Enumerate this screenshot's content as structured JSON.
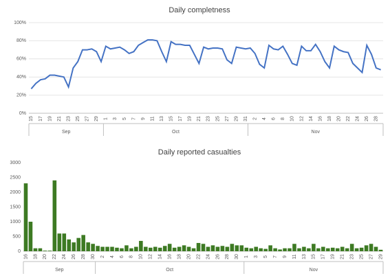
{
  "chart_data": [
    {
      "type": "line",
      "title": "Daily completness",
      "color": "#4472c4",
      "categories": [
        "15",
        null,
        "17",
        null,
        "19",
        null,
        "21",
        null,
        "23",
        null,
        "25",
        null,
        "27",
        null,
        "29",
        null,
        "1",
        null,
        "3",
        null,
        "5",
        null,
        "7",
        null,
        "9",
        null,
        "11",
        null,
        "13",
        null,
        "15",
        null,
        "17",
        null,
        "19",
        null,
        "21",
        null,
        "23",
        null,
        "25",
        null,
        "27",
        null,
        "29",
        null,
        "31",
        null,
        "2",
        null,
        "4",
        null,
        "6",
        null,
        "8",
        null,
        "10",
        null,
        "12",
        null,
        "14",
        null,
        "16",
        null,
        "18",
        null,
        "20",
        null,
        "22",
        null,
        "24",
        null,
        "26",
        null,
        "28",
        null
      ],
      "months": [
        "Sep",
        "Oct",
        "Nov"
      ],
      "values": [
        27,
        33,
        37,
        38,
        42,
        42,
        41,
        40,
        29,
        50,
        57,
        70,
        70,
        71,
        68,
        57,
        74,
        71,
        72,
        73,
        70,
        66,
        68,
        75,
        78,
        81,
        81,
        80,
        68,
        57,
        79,
        76,
        76,
        75,
        75,
        65,
        55,
        73,
        71,
        72,
        72,
        71,
        59,
        55,
        73,
        72,
        71,
        72,
        66,
        54,
        50,
        75,
        71,
        70,
        74,
        65,
        55,
        53,
        74,
        69,
        69,
        76,
        68,
        57,
        50,
        74,
        70,
        68,
        67,
        55,
        50,
        45,
        75,
        65,
        50,
        48
      ],
      "ylim": [
        0,
        100
      ],
      "yticks": [
        {
          "value": 0,
          "label": "0%"
        },
        {
          "value": 20,
          "label": "20%"
        },
        {
          "value": 40,
          "label": "40%"
        },
        {
          "value": 60,
          "label": "60%"
        },
        {
          "value": 80,
          "label": "80%"
        },
        {
          "value": 100,
          "label": "100%"
        }
      ]
    },
    {
      "type": "bar",
      "title": "Daily reported casualties",
      "color": "#3d7a23",
      "categories": [
        "16",
        null,
        "18",
        null,
        "20",
        null,
        "22",
        null,
        "24",
        null,
        "26",
        null,
        "28",
        null,
        "30",
        null,
        "2",
        null,
        "4",
        null,
        "6",
        null,
        "8",
        null,
        "10",
        null,
        "12",
        null,
        "14",
        null,
        "16",
        null,
        "18",
        null,
        "20",
        null,
        "22",
        null,
        "24",
        null,
        "26",
        null,
        "28",
        null,
        "30",
        null,
        "1",
        null,
        "3",
        null,
        "5",
        null,
        "7",
        null,
        "9",
        null,
        "11",
        null,
        "13",
        null,
        "15",
        null,
        "17",
        null,
        "19",
        null,
        "21",
        null,
        "23",
        null,
        "25",
        null,
        "27",
        null,
        "29"
      ],
      "months": [
        "Sep",
        "Oct",
        "Nov"
      ],
      "values": [
        2300,
        1000,
        100,
        100,
        20,
        20,
        2400,
        600,
        600,
        400,
        300,
        450,
        550,
        300,
        250,
        180,
        150,
        150,
        150,
        120,
        100,
        200,
        100,
        150,
        350,
        150,
        120,
        150,
        120,
        180,
        250,
        120,
        150,
        200,
        150,
        100,
        280,
        250,
        150,
        200,
        150,
        180,
        150,
        250,
        200,
        200,
        120,
        100,
        150,
        100,
        80,
        200,
        100,
        60,
        100,
        100,
        250,
        100,
        150,
        100,
        250,
        100,
        150,
        100,
        120,
        100,
        150,
        100,
        250,
        100,
        120,
        200,
        250,
        150,
        50
      ],
      "ylim": [
        0,
        3000
      ],
      "yticks": [
        0,
        500,
        1000,
        1500,
        2000,
        2500,
        3000
      ]
    }
  ]
}
